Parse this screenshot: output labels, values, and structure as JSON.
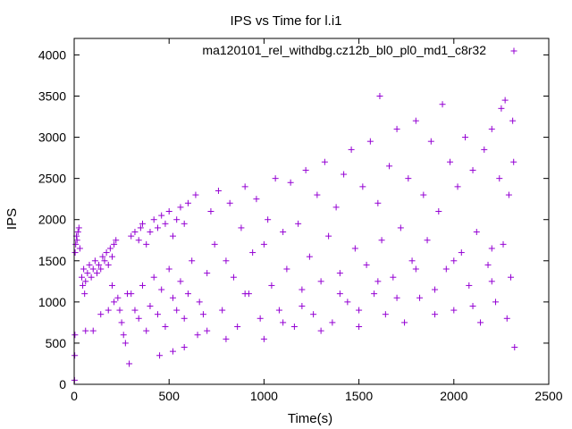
{
  "chart_data": {
    "type": "scatter",
    "title": "IPS vs Time for l.i1",
    "xlabel": "Time(s)",
    "ylabel": "IPS",
    "xlim": [
      0,
      2500
    ],
    "ylim": [
      0,
      4200
    ],
    "x_ticks": [
      "0",
      "500",
      "1000",
      "1500",
      "2000",
      "2500"
    ],
    "y_ticks": [
      "0",
      "500",
      "1000",
      "1500",
      "2000",
      "2500",
      "3000",
      "3500",
      "4000"
    ],
    "grid": false,
    "legend_position": "top-right",
    "series": [
      {
        "name": "ma120101_rel_withdbg.cz12b_bl0_pl0_md1_c8r32",
        "color": "#9400d3",
        "marker": "+",
        "points": [
          [
            2,
            50
          ],
          [
            3,
            350
          ],
          [
            4,
            600
          ],
          [
            5,
            1600
          ],
          [
            8,
            1700
          ],
          [
            12,
            1800
          ],
          [
            15,
            1750
          ],
          [
            20,
            1850
          ],
          [
            25,
            1900
          ],
          [
            30,
            1650
          ],
          [
            40,
            1300
          ],
          [
            45,
            1200
          ],
          [
            50,
            1400
          ],
          [
            55,
            1100
          ],
          [
            60,
            1250
          ],
          [
            70,
            1350
          ],
          [
            80,
            1450
          ],
          [
            90,
            1300
          ],
          [
            100,
            1400
          ],
          [
            110,
            1500
          ],
          [
            120,
            1350
          ],
          [
            130,
            1450
          ],
          [
            140,
            1400
          ],
          [
            150,
            1550
          ],
          [
            160,
            1500
          ],
          [
            170,
            1600
          ],
          [
            180,
            1450
          ],
          [
            190,
            1650
          ],
          [
            200,
            1550
          ],
          [
            210,
            1700
          ],
          [
            60,
            650
          ],
          [
            100,
            650
          ],
          [
            140,
            850
          ],
          [
            180,
            900
          ],
          [
            200,
            1200
          ],
          [
            210,
            1000
          ],
          [
            220,
            1750
          ],
          [
            230,
            1050
          ],
          [
            240,
            900
          ],
          [
            250,
            750
          ],
          [
            260,
            600
          ],
          [
            270,
            500
          ],
          [
            280,
            1100
          ],
          [
            290,
            250
          ],
          [
            300,
            1800
          ],
          [
            320,
            1850
          ],
          [
            340,
            1750
          ],
          [
            350,
            1900
          ],
          [
            360,
            1950
          ],
          [
            380,
            1700
          ],
          [
            400,
            1850
          ],
          [
            420,
            2000
          ],
          [
            440,
            1900
          ],
          [
            460,
            2050
          ],
          [
            480,
            1950
          ],
          [
            500,
            2100
          ],
          [
            520,
            1800
          ],
          [
            540,
            2000
          ],
          [
            560,
            2150
          ],
          [
            580,
            1950
          ],
          [
            600,
            2200
          ],
          [
            300,
            1100
          ],
          [
            320,
            900
          ],
          [
            340,
            800
          ],
          [
            360,
            1200
          ],
          [
            380,
            650
          ],
          [
            400,
            950
          ],
          [
            420,
            1300
          ],
          [
            440,
            850
          ],
          [
            460,
            1150
          ],
          [
            480,
            700
          ],
          [
            500,
            1400
          ],
          [
            520,
            1050
          ],
          [
            540,
            900
          ],
          [
            560,
            1250
          ],
          [
            580,
            800
          ],
          [
            600,
            1100
          ],
          [
            620,
            1500
          ],
          [
            640,
            2300
          ],
          [
            660,
            1000
          ],
          [
            680,
            850
          ],
          [
            700,
            1350
          ],
          [
            720,
            2100
          ],
          [
            740,
            1700
          ],
          [
            760,
            2350
          ],
          [
            780,
            900
          ],
          [
            800,
            1500
          ],
          [
            820,
            2200
          ],
          [
            840,
            1300
          ],
          [
            860,
            700
          ],
          [
            880,
            1900
          ],
          [
            900,
            2400
          ],
          [
            920,
            1100
          ],
          [
            940,
            1600
          ],
          [
            960,
            2250
          ],
          [
            980,
            800
          ],
          [
            1000,
            1700
          ],
          [
            1020,
            2000
          ],
          [
            1040,
            1200
          ],
          [
            1060,
            2500
          ],
          [
            1080,
            900
          ],
          [
            1100,
            1850
          ],
          [
            1120,
            1400
          ],
          [
            1140,
            2450
          ],
          [
            1160,
            700
          ],
          [
            1180,
            1950
          ],
          [
            1200,
            1150
          ],
          [
            1220,
            2600
          ],
          [
            1240,
            1550
          ],
          [
            1260,
            850
          ],
          [
            1280,
            2300
          ],
          [
            1300,
            1250
          ],
          [
            1320,
            2700
          ],
          [
            1340,
            1800
          ],
          [
            1360,
            750
          ],
          [
            1380,
            2150
          ],
          [
            1400,
            1350
          ],
          [
            1420,
            2550
          ],
          [
            1440,
            1000
          ],
          [
            1460,
            2850
          ],
          [
            1480,
            1650
          ],
          [
            1500,
            700
          ],
          [
            1520,
            2400
          ],
          [
            1540,
            1450
          ],
          [
            1560,
            2950
          ],
          [
            1580,
            1100
          ],
          [
            1600,
            2200
          ],
          [
            1610,
            3500
          ],
          [
            1620,
            1750
          ],
          [
            1640,
            850
          ],
          [
            1660,
            2650
          ],
          [
            1680,
            1300
          ],
          [
            1700,
            3100
          ],
          [
            1720,
            1900
          ],
          [
            1740,
            750
          ],
          [
            1760,
            2500
          ],
          [
            1780,
            1500
          ],
          [
            1800,
            3200
          ],
          [
            1820,
            1050
          ],
          [
            1840,
            2300
          ],
          [
            1860,
            1750
          ],
          [
            1880,
            2950
          ],
          [
            1900,
            850
          ],
          [
            1920,
            2100
          ],
          [
            1940,
            3400
          ],
          [
            1960,
            1400
          ],
          [
            1980,
            2700
          ],
          [
            2000,
            900
          ],
          [
            2020,
            2400
          ],
          [
            2040,
            1600
          ],
          [
            2060,
            3000
          ],
          [
            2080,
            1200
          ],
          [
            2100,
            2600
          ],
          [
            2120,
            1850
          ],
          [
            2140,
            750
          ],
          [
            2160,
            2850
          ],
          [
            2180,
            1450
          ],
          [
            2200,
            3100
          ],
          [
            2220,
            1000
          ],
          [
            2240,
            2500
          ],
          [
            2260,
            1700
          ],
          [
            2270,
            3450
          ],
          [
            2280,
            800
          ],
          [
            2290,
            2300
          ],
          [
            2300,
            1300
          ],
          [
            2310,
            3200
          ],
          [
            2315,
            2700
          ],
          [
            2320,
            450
          ],
          [
            2250,
            3350
          ],
          [
            2200,
            1650
          ],
          [
            900,
            1100
          ],
          [
            1000,
            550
          ],
          [
            1100,
            750
          ],
          [
            1200,
            950
          ],
          [
            1300,
            650
          ],
          [
            1400,
            1100
          ],
          [
            1500,
            900
          ],
          [
            1600,
            1250
          ],
          [
            1700,
            1050
          ],
          [
            1800,
            1400
          ],
          [
            1900,
            1150
          ],
          [
            2000,
            1500
          ],
          [
            2100,
            950
          ],
          [
            2200,
            1250
          ],
          [
            700,
            650
          ],
          [
            800,
            550
          ],
          [
            450,
            350
          ],
          [
            520,
            400
          ],
          [
            580,
            450
          ],
          [
            650,
            600
          ]
        ]
      }
    ]
  }
}
